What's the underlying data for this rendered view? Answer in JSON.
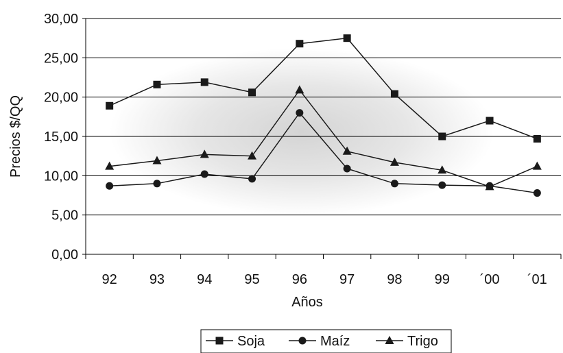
{
  "chart_data": {
    "type": "line",
    "categories": [
      "92",
      "93",
      "94",
      "95",
      "96",
      "97",
      "98",
      "99",
      "´00",
      "´01"
    ],
    "series": [
      {
        "name": "Soja",
        "marker": "square",
        "values": [
          18.9,
          21.6,
          21.9,
          20.6,
          26.8,
          27.5,
          20.4,
          15.0,
          17.0,
          14.7
        ]
      },
      {
        "name": "Maíz",
        "marker": "circle",
        "values": [
          8.7,
          9.0,
          10.2,
          9.6,
          18.0,
          10.9,
          9.0,
          8.8,
          8.7,
          7.8
        ]
      },
      {
        "name": "Trigo",
        "marker": "triangle",
        "values": [
          11.2,
          11.9,
          12.7,
          12.5,
          20.9,
          13.1,
          11.7,
          10.7,
          8.6,
          11.2
        ]
      }
    ],
    "y_ticks": [
      "0,00",
      "5,00",
      "10,00",
      "15,00",
      "20,00",
      "25,00",
      "30,00"
    ],
    "ylim": [
      0,
      30
    ],
    "xlabel": "Años",
    "ylabel": "Precios $/QQ",
    "grid": "horizontal",
    "legend_position": "bottom",
    "line_color": "#1a1a1a"
  }
}
